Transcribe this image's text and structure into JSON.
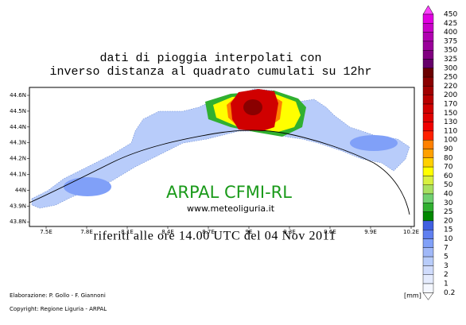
{
  "title": [
    "dati di pioggia interpolati con",
    "inverso distanza al quadrato cumulati su 12hr"
  ],
  "map": {
    "lon_labels": [
      "7.5E",
      "7.8E",
      "8.1E",
      "8.4E",
      "8.7E",
      "9E",
      "9.3E",
      "9.6E",
      "9.9E",
      "10.2E"
    ],
    "lat_labels": [
      "44.6N",
      "44.5N",
      "44.4N",
      "44.3N",
      "44.2N",
      "44.1N",
      "44N",
      "43.9N",
      "43.8N"
    ],
    "watermark": "ARPAL CFMI-RL",
    "website": "www.meteoliguria.it"
  },
  "subtitle": "riferiti alle ore 14.00 UTC del 04 Nov 2011",
  "credits": [
    "Elaborazione: P. Gollo - F. Giannoni",
    "Copyright: Regione Liguria - ARPAL"
  ],
  "colorbar": {
    "unit": "[mm]",
    "over_color": "#ff40ff",
    "labels": [
      "450",
      "425",
      "400",
      "375",
      "350",
      "325",
      "300",
      "250",
      "220",
      "200",
      "170",
      "150",
      "130",
      "110",
      "100",
      "90",
      "80",
      "70",
      "60",
      "50",
      "40",
      "30",
      "25",
      "20",
      "15",
      "10",
      "7",
      "5",
      "3",
      "2",
      "1",
      "0.2"
    ],
    "colors": [
      "#e000e0",
      "#c800c8",
      "#b000b0",
      "#9a009a",
      "#800080",
      "#66006a",
      "#6a0000",
      "#8a0000",
      "#a00000",
      "#b80000",
      "#d00000",
      "#e00000",
      "#f00000",
      "#ff2000",
      "#ff8000",
      "#ffa000",
      "#ffd000",
      "#ffff00",
      "#d8f040",
      "#a8e060",
      "#70d070",
      "#30b030",
      "#008800",
      "#4060e0",
      "#6080f0",
      "#80a0f8",
      "#a0b8f8",
      "#b8ccfa",
      "#d0dcfc",
      "#e4ebfd",
      "#f4f7ff"
    ]
  }
}
